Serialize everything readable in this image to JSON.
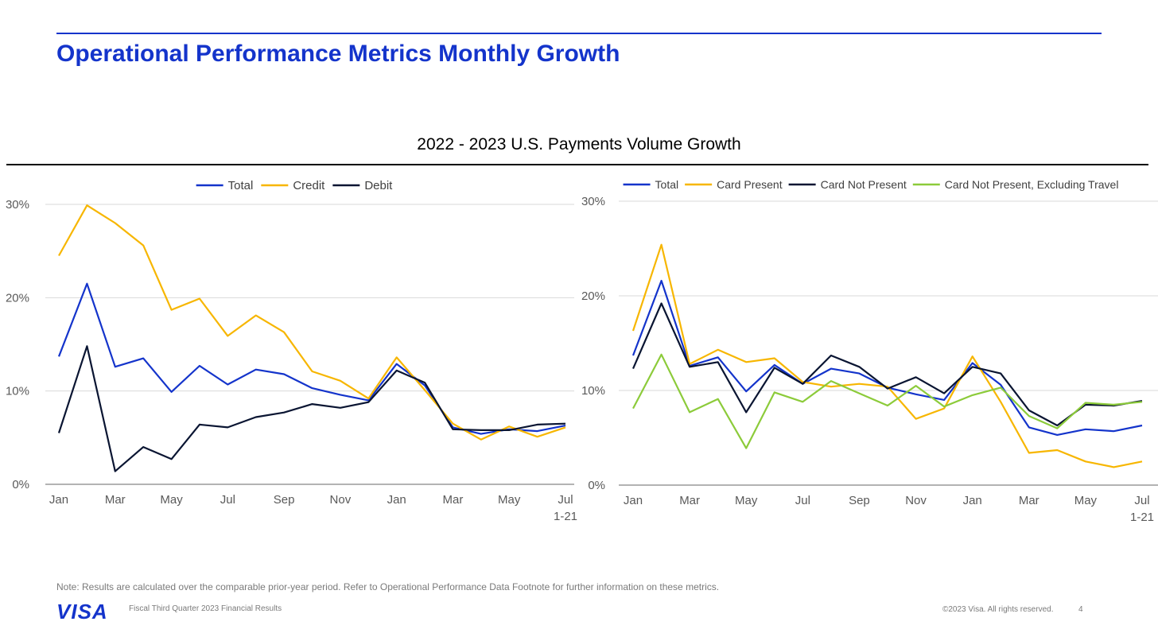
{
  "page": {
    "title": "Operational Performance Metrics Monthly Growth",
    "section_title": "2022 - 2023 U.S. Payments Volume Growth",
    "note": "Note: Results are calculated over the comparable prior-year period. Refer to Operational Performance Data Footnote for further information on these metrics.",
    "footer_left": "Fiscal Third Quarter 2023 Financial Results",
    "footer_right": "©2023 Visa. All rights reserved.",
    "page_number": "4",
    "logo_text": "VISA",
    "brand_color": "#1434CB"
  },
  "chart_data": [
    {
      "type": "line",
      "x_tick_labels": [
        "Jan",
        "Mar",
        "May",
        "Jul",
        "Sep",
        "Nov",
        "Jan",
        "Mar",
        "May",
        "Jul"
      ],
      "x_last_extra_label": "1-21",
      "y_tick_labels": [
        "0%",
        "10%",
        "20%",
        "30%"
      ],
      "ylim": [
        0,
        30
      ],
      "grid": true,
      "legend_position": "top-center",
      "series": [
        {
          "name": "Total",
          "color": "#1434CB",
          "values": [
            13.7,
            21.5,
            12.6,
            13.5,
            9.9,
            12.7,
            10.7,
            12.3,
            11.8,
            10.3,
            9.6,
            9.0,
            12.9,
            10.6,
            6.1,
            5.4,
            5.9,
            5.7,
            6.3
          ]
        },
        {
          "name": "Credit",
          "color": "#F7B600",
          "values": [
            24.5,
            29.9,
            28.0,
            25.6,
            18.7,
            19.9,
            15.9,
            18.1,
            16.3,
            12.1,
            11.1,
            9.2,
            13.6,
            10.1,
            6.5,
            4.8,
            6.2,
            5.1,
            6.1
          ]
        },
        {
          "name": "Debit",
          "color": "#0A1532",
          "values": [
            5.5,
            14.8,
            1.4,
            4.0,
            2.7,
            6.4,
            6.1,
            7.2,
            7.7,
            8.6,
            8.2,
            8.8,
            12.2,
            10.9,
            5.9,
            5.8,
            5.8,
            6.4,
            6.5
          ]
        }
      ]
    },
    {
      "type": "line",
      "x_tick_labels": [
        "Jan",
        "Mar",
        "May",
        "Jul",
        "Sep",
        "Nov",
        "Jan",
        "Mar",
        "May",
        "Jul"
      ],
      "x_last_extra_label": "1-21",
      "y_tick_labels": [
        "0%",
        "10%",
        "20%",
        "30%"
      ],
      "ylim": [
        0,
        30
      ],
      "grid": true,
      "legend_position": "top-center",
      "series": [
        {
          "name": "Total",
          "color": "#1434CB",
          "values": [
            13.7,
            21.6,
            12.6,
            13.5,
            9.9,
            12.7,
            10.7,
            12.3,
            11.8,
            10.3,
            9.6,
            9.0,
            12.9,
            10.6,
            6.1,
            5.3,
            5.9,
            5.7,
            6.3
          ]
        },
        {
          "name": "Card Present",
          "color": "#F7B600",
          "values": [
            16.3,
            25.4,
            12.8,
            14.3,
            13.0,
            13.4,
            10.9,
            10.4,
            10.7,
            10.4,
            7.0,
            8.1,
            13.6,
            8.8,
            3.4,
            3.7,
            2.5,
            1.9,
            2.5
          ]
        },
        {
          "name": "Card Not Present",
          "color": "#0A1532",
          "values": [
            12.3,
            19.2,
            12.5,
            13.0,
            7.7,
            12.4,
            10.7,
            13.7,
            12.5,
            10.2,
            11.4,
            9.7,
            12.5,
            11.8,
            7.9,
            6.3,
            8.5,
            8.4,
            8.9
          ]
        },
        {
          "name": "Card Not Present, Excluding Travel",
          "color": "#8CCB3A",
          "values": [
            8.1,
            13.8,
            7.7,
            9.1,
            3.9,
            9.8,
            8.8,
            11.0,
            9.7,
            8.4,
            10.5,
            8.3,
            9.5,
            10.3,
            7.3,
            6.0,
            8.7,
            8.5,
            8.8
          ]
        }
      ]
    }
  ]
}
